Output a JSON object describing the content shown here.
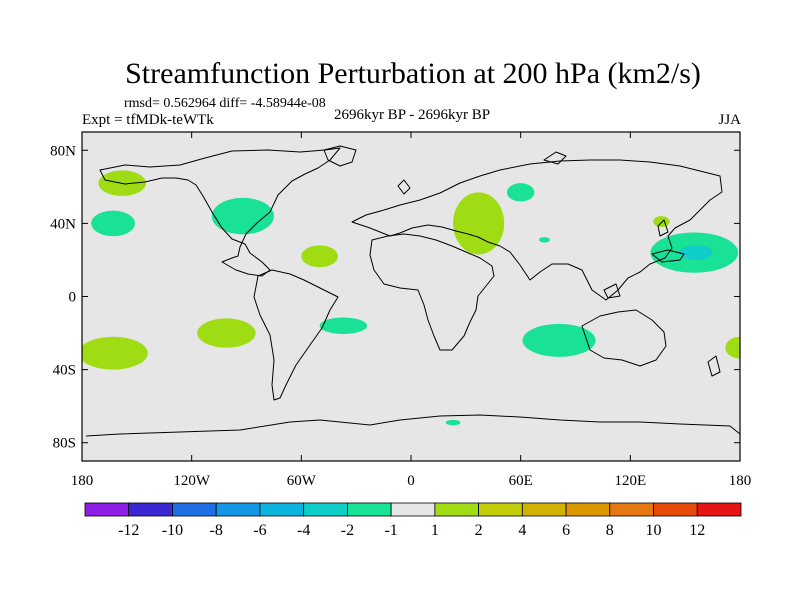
{
  "chart_data": {
    "type": "heatmap",
    "title": "Streamfunction Perturbation at 200 hPa (km2/s)",
    "stats_line": "rmsd= 0.562964 diff= -4.58944e-08",
    "experiment": "Expt = tfMDk-teWTk",
    "period": "2696kyr BP - 2696kyr BP",
    "season": "JJA",
    "x_ticks": [
      {
        "value": -180,
        "label": "180"
      },
      {
        "value": -120,
        "label": "120W"
      },
      {
        "value": -60,
        "label": "60W"
      },
      {
        "value": 0,
        "label": "0"
      },
      {
        "value": 60,
        "label": "60E"
      },
      {
        "value": 120,
        "label": "120E"
      },
      {
        "value": 180,
        "label": "180"
      }
    ],
    "y_ticks": [
      {
        "value": 80,
        "label": "80N"
      },
      {
        "value": 40,
        "label": "40N"
      },
      {
        "value": 0,
        "label": "0"
      },
      {
        "value": -40,
        "label": "40S"
      },
      {
        "value": -80,
        "label": "80S"
      }
    ],
    "xlim": [
      -180,
      180
    ],
    "ylim": [
      -90,
      90
    ],
    "background_color": "#e6e6e6",
    "colorbar": {
      "colors": [
        "#8c1ee6",
        "#3c28d2",
        "#1e6ee6",
        "#1496e6",
        "#0ab4dc",
        "#0fcdc8",
        "#19e196",
        "#e6e6e6",
        "#a0dc14",
        "#c3cd0a",
        "#d2b400",
        "#dc9600",
        "#e67814",
        "#e64b0a",
        "#e61414"
      ],
      "labels": [
        "-12",
        "-10",
        "-8",
        "-6",
        "-4",
        "-2",
        "-1",
        "1",
        "2",
        "4",
        "6",
        "8",
        "10",
        "12"
      ]
    },
    "anomalies": [
      {
        "name": "pos-alaska",
        "lon": -158,
        "lat": 62,
        "rlon": 13,
        "rlat": 7,
        "value": 2,
        "color": "#a0dc14"
      },
      {
        "name": "neg-ne-pacific",
        "lon": -163,
        "lat": 40,
        "rlon": 12,
        "rlat": 7,
        "value": -1,
        "color": "#19e196"
      },
      {
        "name": "neg-north-america",
        "lon": -92,
        "lat": 44,
        "rlon": 17,
        "rlat": 10,
        "value": -1,
        "color": "#19e196"
      },
      {
        "name": "pos-caribbean",
        "lon": -50,
        "lat": 22,
        "rlon": 10,
        "rlat": 6,
        "value": 2,
        "color": "#a0dc14"
      },
      {
        "name": "neg-central-asia",
        "lon": 60,
        "lat": 57,
        "rlon": 7.5,
        "rlat": 5,
        "value": -1,
        "color": "#19e196"
      },
      {
        "name": "pos-middle-east",
        "lon": 37,
        "lat": 40,
        "rlon": 14,
        "rlat": 17,
        "value": 2,
        "color": "#a0dc14"
      },
      {
        "name": "neg-arabia-small",
        "lon": 73,
        "lat": 31,
        "rlon": 3,
        "rlat": 1.5,
        "value": -1,
        "color": "#19e196"
      },
      {
        "name": "pos-japan",
        "lon": 137,
        "lat": 41,
        "rlon": 4.5,
        "rlat": 3,
        "value": 2,
        "color": "#a0dc14"
      },
      {
        "name": "neg-west-pacific",
        "lon": 155,
        "lat": 24,
        "rlon": 24,
        "rlat": 11,
        "value": -1,
        "color": "#19e196"
      },
      {
        "name": "neg-west-pacific-core",
        "lon": 156,
        "lat": 24,
        "rlon": 9,
        "rlat": 4,
        "value": -2,
        "color": "#0fcdc8"
      },
      {
        "name": "pos-south-pacific-west",
        "lon": -163,
        "lat": -31,
        "rlon": 19,
        "rlat": 9,
        "value": 2,
        "color": "#a0dc14"
      },
      {
        "name": "pos-south-pacific-east",
        "lon": -101,
        "lat": -20,
        "rlon": 16,
        "rlat": 8,
        "value": 2,
        "color": "#a0dc14"
      },
      {
        "name": "neg-south-atlantic",
        "lon": -37,
        "lat": -16,
        "rlon": 13,
        "rlat": 4.5,
        "value": -1,
        "color": "#19e196"
      },
      {
        "name": "neg-indian-ocean",
        "lon": 81,
        "lat": -24,
        "rlon": 20,
        "rlat": 9,
        "value": -1,
        "color": "#19e196"
      },
      {
        "name": "pos-south-pacific-dateline",
        "lon": 180,
        "lat": -28,
        "rlon": 8,
        "rlat": 6,
        "value": 2,
        "color": "#a0dc14"
      },
      {
        "name": "neg-antarctic-small",
        "lon": 23,
        "lat": -69,
        "rlon": 4,
        "rlat": 1.5,
        "value": -1,
        "color": "#19e196"
      }
    ]
  }
}
